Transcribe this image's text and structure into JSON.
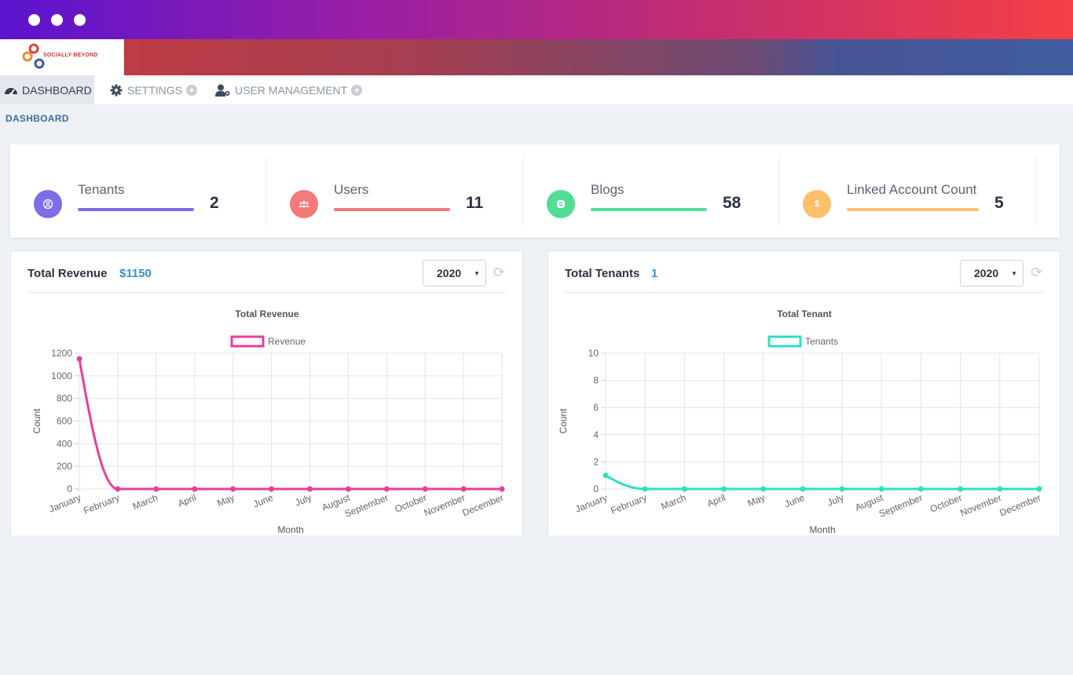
{
  "window": {
    "dots": 3
  },
  "logo": {
    "text": "SOCIALLY BEYOND"
  },
  "nav": [
    {
      "label": "DASHBOARD",
      "icon": "dashboard-icon"
    },
    {
      "label": "SETTINGS",
      "icon": "gear-icon"
    },
    {
      "label": "USER MANAGEMENT",
      "icon": "user-gear-icon"
    }
  ],
  "breadcrumb": "DASHBOARD",
  "stats": [
    {
      "label": "Tenants",
      "value": "2",
      "color": "#7b6ee8",
      "icon": "tenant-icon"
    },
    {
      "label": "Users",
      "value": "11",
      "color": "#f47a79",
      "icon": "users-icon"
    },
    {
      "label": "Blogs",
      "value": "58",
      "color": "#4fde93",
      "icon": "blog-icon"
    },
    {
      "label": "Linked Account Count",
      "value": "5",
      "color": "#fcc068",
      "icon": "dollar-icon"
    }
  ],
  "panels": [
    {
      "title": "Total Revenue",
      "value": "$1150",
      "year": "2020"
    },
    {
      "title": "Total Tenants",
      "value": "1",
      "year": "2020"
    }
  ],
  "chart_data": [
    {
      "type": "line",
      "title": "Total Revenue",
      "xlabel": "Month",
      "ylabel": "Count",
      "categories": [
        "January",
        "February",
        "March",
        "April",
        "May",
        "June",
        "July",
        "August",
        "September",
        "October",
        "November",
        "December"
      ],
      "series": [
        {
          "name": "Revenue",
          "values": [
            1150,
            0,
            0,
            0,
            0,
            0,
            0,
            0,
            0,
            0,
            0,
            0
          ]
        }
      ],
      "ylim": [
        0,
        1200
      ],
      "yticks": [
        0,
        200,
        400,
        600,
        800,
        1000,
        1200
      ],
      "color": "#e83e9b",
      "legend": "top-center",
      "grid": true
    },
    {
      "type": "line",
      "title": "Total Tenant",
      "xlabel": "Month",
      "ylabel": "Count",
      "categories": [
        "January",
        "February",
        "March",
        "April",
        "May",
        "June",
        "July",
        "August",
        "September",
        "October",
        "November",
        "December"
      ],
      "series": [
        {
          "name": "Tenants",
          "values": [
            1,
            0,
            0,
            0,
            0,
            0,
            0,
            0,
            0,
            0,
            0,
            0
          ]
        }
      ],
      "ylim": [
        0,
        10
      ],
      "yticks": [
        0,
        2,
        4,
        6,
        8,
        10
      ],
      "color": "#2ee0c0",
      "legend": "top-center",
      "grid": true
    }
  ]
}
